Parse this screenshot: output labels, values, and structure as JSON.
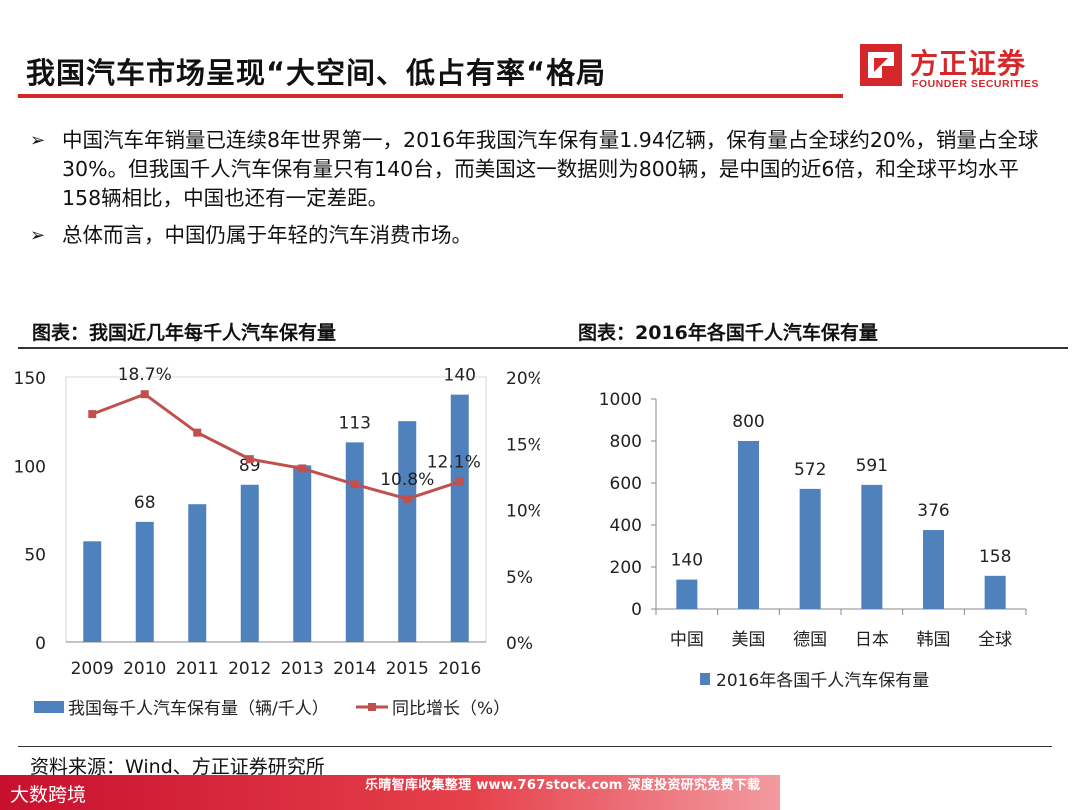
{
  "header": {
    "title": "我国汽车市场呈现“大空间、低占有率“格局",
    "logo_cn": "方正证券",
    "logo_en": "FOUNDER SECURITIES"
  },
  "bullets": [
    {
      "marker": "➢",
      "text": "中国汽车年销量已连续8年世界第一，2016年我国汽车保有量1.94亿辆，保有量占全球约20%，销量占全球30%。但我国千人汽车保有量只有140台，而美国这一数据则为800辆，是中国的近6倍，和全球平均水平158辆相比，中国也还有一定差距。"
    },
    {
      "marker": "➢",
      "text": "总体而言，中国仍属于年轻的汽车消费市场。"
    }
  ],
  "chart1_title": "图表：我国近几年每千人汽车保有量",
  "chart2_title": "图表：2016年各国千人汽车保有量",
  "source": "资料来源：Wind、方正证券研究所",
  "watermark": {
    "text": "乐晴智库收集整理 www.767stock.com 深度投资研究免费下载",
    "brand": "大数跨境"
  },
  "colors": {
    "bar": "#4f81bd",
    "line": "#c0504d",
    "accent": "#d6282a"
  },
  "chart_data": [
    {
      "type": "bar+line",
      "title": "图表：我国近几年每千人汽车保有量",
      "categories": [
        "2009",
        "2010",
        "2011",
        "2012",
        "2013",
        "2014",
        "2015",
        "2016"
      ],
      "series": [
        {
          "name": "我国每千人汽车保有量（辆/千人）",
          "kind": "bar",
          "axis": "left",
          "values": [
            57,
            68,
            78,
            89,
            100,
            113,
            125,
            140
          ],
          "labels": [
            "",
            "68",
            "",
            "89",
            "",
            "113",
            "",
            "140"
          ]
        },
        {
          "name": "同比增长（%）",
          "kind": "line",
          "axis": "right",
          "values": [
            17.2,
            18.7,
            15.8,
            13.8,
            13.1,
            11.9,
            10.8,
            12.1
          ],
          "labels": [
            "",
            "18.7%",
            "",
            "",
            "",
            "",
            "10.8%",
            "12.1%"
          ]
        }
      ],
      "y_left": {
        "min": 0,
        "max": 150,
        "ticks": [
          "0",
          "50",
          "100",
          "150"
        ],
        "tick_values": [
          0,
          50,
          100,
          150
        ]
      },
      "y_right": {
        "min": 0,
        "max": 20,
        "ticks": [
          "0%",
          "5%",
          "10%",
          "15%",
          "20%"
        ],
        "tick_values": [
          0,
          5,
          10,
          15,
          20
        ]
      },
      "legend_position": "bottom"
    },
    {
      "type": "bar",
      "title": "图表：2016年各国千人汽车保有量",
      "categories": [
        "中国",
        "美国",
        "德国",
        "日本",
        "韩国",
        "全球"
      ],
      "series": [
        {
          "name": "2016年各国千人汽车保有量",
          "values": [
            140,
            800,
            572,
            591,
            376,
            158
          ],
          "labels": [
            "140",
            "800",
            "572",
            "591",
            "376",
            "158"
          ]
        }
      ],
      "y": {
        "min": 0,
        "max": 1000,
        "ticks": [
          "0",
          "200",
          "400",
          "600",
          "800",
          "1000"
        ],
        "tick_values": [
          0,
          200,
          400,
          600,
          800,
          1000
        ]
      },
      "legend_position": "bottom"
    }
  ]
}
